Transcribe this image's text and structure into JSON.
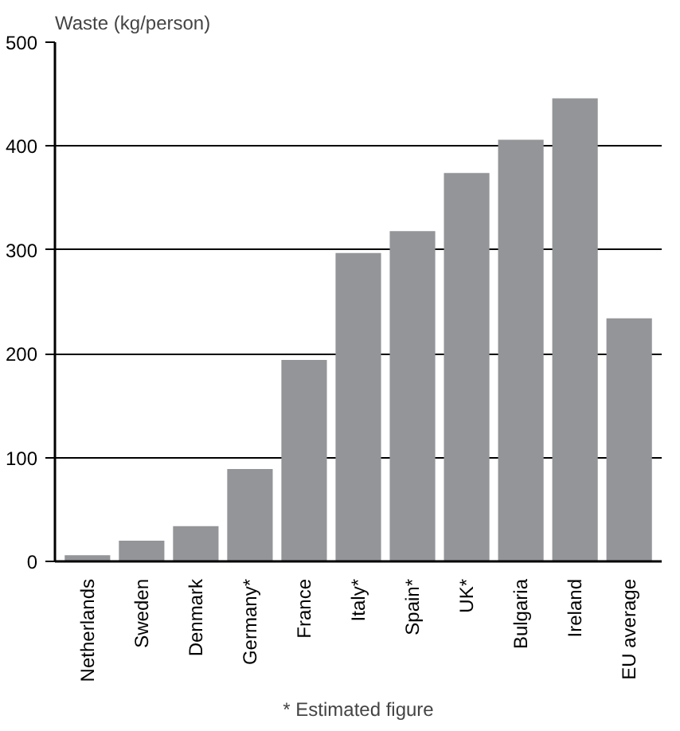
{
  "chart_data": {
    "type": "bar",
    "ylabel": "Waste (kg/person)",
    "categories": [
      "Netherlands",
      "Sweden",
      "Denmark",
      "Germany*",
      "France",
      "Italy*",
      "Spain*",
      "UK*",
      "Bulgaria",
      "Ireland",
      "EU average"
    ],
    "values": [
      6,
      20,
      34,
      89,
      194,
      297,
      318,
      374,
      406,
      446,
      234
    ],
    "color": "#939598",
    "ylim": [
      0,
      500
    ],
    "yticks": [
      0,
      100,
      200,
      300,
      400,
      500
    ],
    "grid": "y",
    "annotations": [
      "* Estimated figure"
    ]
  }
}
